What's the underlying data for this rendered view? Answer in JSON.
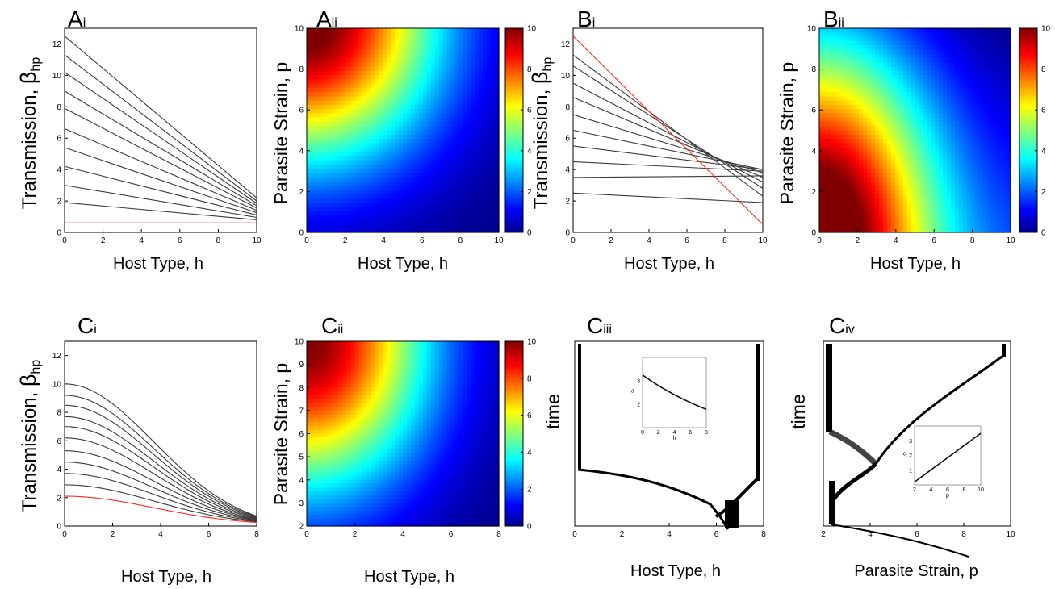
{
  "panels": {
    "Ai": {
      "big": "A",
      "small": "i"
    },
    "Aii": {
      "big": "A",
      "small": "ii"
    },
    "Bi": {
      "big": "B",
      "small": "i"
    },
    "Bii": {
      "big": "B",
      "small": "ii"
    },
    "Ci": {
      "big": "C",
      "small": "i"
    },
    "Cii": {
      "big": "C",
      "small": "ii"
    },
    "Ciii": {
      "big": "C",
      "small": "iii"
    },
    "Civ": {
      "big": "C",
      "small": "iv"
    }
  },
  "axis_text": {
    "host_type": "Host Type, h",
    "parasite_strain": "Parasite Strain, p",
    "transmission": "Transmission, ",
    "beta": "β",
    "beta_sub": "hp",
    "time": "time"
  },
  "colors": {
    "line": "#3a3a3a",
    "highlight": "#ff2a1a",
    "colormap": "jet"
  },
  "chart_data": [
    {
      "id": "Ai",
      "type": "line",
      "xlabel": "Host Type, h",
      "ylabel": "Transmission, β_hp",
      "xlim": [
        0,
        10
      ],
      "ylim": [
        0,
        13
      ],
      "xticks": [
        0,
        2,
        4,
        6,
        8,
        10
      ],
      "yticks": [
        0,
        2,
        4,
        6,
        8,
        10,
        12
      ],
      "x": [
        0,
        10
      ],
      "series": [
        {
          "values": [
            12.5,
            2.2
          ]
        },
        {
          "values": [
            11.3,
            2.0
          ]
        },
        {
          "values": [
            10.2,
            1.85
          ]
        },
        {
          "values": [
            9.0,
            1.7
          ]
        },
        {
          "values": [
            7.9,
            1.55
          ]
        },
        {
          "values": [
            6.6,
            1.4
          ]
        },
        {
          "values": [
            5.4,
            1.25
          ]
        },
        {
          "values": [
            4.2,
            1.1
          ]
        },
        {
          "values": [
            3.0,
            0.95
          ]
        },
        {
          "values": [
            1.9,
            0.8
          ]
        },
        {
          "values": [
            0.6,
            0.6
          ],
          "highlight": true
        }
      ]
    },
    {
      "id": "Aii",
      "type": "heatmap",
      "xlabel": "Host Type, h",
      "ylabel": "Parasite Strain, p",
      "xlim": [
        0,
        10
      ],
      "ylim": [
        0,
        10
      ],
      "xticks": [
        0,
        2,
        4,
        6,
        8,
        10
      ],
      "yticks": [
        0,
        2,
        4,
        6,
        8,
        10
      ],
      "colorbar": {
        "min": 0,
        "max": 10,
        "ticks": [
          0,
          2,
          4,
          6,
          8,
          10
        ]
      },
      "pattern": "max value 10 at h=0, p=10; decreasing toward h=10, p=0"
    },
    {
      "id": "Bi",
      "type": "line",
      "xlabel": "Host Type, h",
      "ylabel": "Transmission, β_hp",
      "xlim": [
        0,
        10
      ],
      "ylim": [
        0,
        13
      ],
      "xticks": [
        0,
        2,
        4,
        6,
        8,
        10
      ],
      "yticks": [
        0,
        2,
        4,
        6,
        8,
        10,
        12
      ],
      "x": [
        0,
        10
      ],
      "series": [
        {
          "values": [
            11.3,
            2.3
          ]
        },
        {
          "values": [
            10.6,
            2.8
          ]
        },
        {
          "values": [
            9.5,
            3.2
          ]
        },
        {
          "values": [
            8.6,
            3.5
          ]
        },
        {
          "values": [
            7.5,
            3.8
          ]
        },
        {
          "values": [
            6.5,
            4.0
          ]
        },
        {
          "values": [
            5.5,
            4.0
          ]
        },
        {
          "values": [
            4.5,
            3.9
          ]
        },
        {
          "values": [
            3.5,
            3.6
          ]
        },
        {
          "values": [
            2.5,
            1.9
          ]
        },
        {
          "values": [
            12.5,
            0.5
          ],
          "highlight": true
        }
      ]
    },
    {
      "id": "Bii",
      "type": "heatmap",
      "xlabel": "Host Type, h",
      "ylabel": "Parasite Strain, p",
      "xlim": [
        0,
        10
      ],
      "ylim": [
        0,
        10
      ],
      "xticks": [
        0,
        2,
        4,
        6,
        8,
        10
      ],
      "yticks": [
        0,
        2,
        4,
        6,
        8,
        10
      ],
      "colorbar": {
        "min": 0,
        "max": 10,
        "ticks": [
          0,
          2,
          4,
          6,
          8,
          10
        ]
      },
      "pattern": "max value 10 at h=0, p=0; decreasing toward high h and high p"
    },
    {
      "id": "Ci",
      "type": "line",
      "xlabel": "Host Type, h",
      "ylabel": "Transmission, β_hp",
      "xlim": [
        0,
        8
      ],
      "ylim": [
        0,
        13
      ],
      "xticks": [
        0,
        2,
        4,
        6,
        8
      ],
      "yticks": [
        0,
        2,
        4,
        6,
        8,
        10,
        12
      ],
      "curve": "bell-shaped decline, peak at h=0, sigma≈3.7",
      "series": [
        {
          "start": 10.0,
          "end": 0.7
        },
        {
          "start": 9.2,
          "end": 0.65
        },
        {
          "start": 8.5,
          "end": 0.6
        },
        {
          "start": 7.7,
          "end": 0.55
        },
        {
          "start": 7.0,
          "end": 0.5
        },
        {
          "start": 6.2,
          "end": 0.45
        },
        {
          "start": 5.3,
          "end": 0.42
        },
        {
          "start": 4.5,
          "end": 0.38
        },
        {
          "start": 3.7,
          "end": 0.34
        },
        {
          "start": 2.9,
          "end": 0.3
        },
        {
          "start": 2.1,
          "end": 0.25,
          "highlight": true
        }
      ]
    },
    {
      "id": "Cii",
      "type": "heatmap",
      "xlabel": "Host Type, h",
      "ylabel": "Parasite Strain, p",
      "xlim": [
        0,
        8
      ],
      "ylim": [
        2,
        10
      ],
      "xticks": [
        0,
        2,
        4,
        6,
        8
      ],
      "yticks": [
        2,
        3,
        4,
        5,
        6,
        7,
        8,
        9,
        10
      ],
      "colorbar": {
        "min": 0,
        "max": 10,
        "ticks": [
          0,
          2,
          4,
          6,
          8,
          10
        ]
      },
      "pattern": "max value 10 at h=0, p=10; decreasing toward h=8, p=2"
    },
    {
      "id": "Ciii",
      "type": "heatmap",
      "xlabel": "Host Type, h",
      "ylabel": "time",
      "xlim": [
        0,
        8
      ],
      "xticks": [
        0,
        2,
        4,
        6,
        8
      ],
      "inset": {
        "type": "line",
        "xlabel": "h",
        "ylabel": "a",
        "xlim": [
          0,
          8
        ],
        "ylim": [
          1,
          4
        ],
        "xticks": [
          0,
          2,
          4,
          6,
          8
        ],
        "yticks": [
          2,
          3
        ],
        "x": [
          0,
          2,
          4,
          6,
          8
        ],
        "y": [
          3.2,
          2.7,
          2.3,
          2.0,
          1.8
        ]
      }
    },
    {
      "id": "Civ",
      "type": "heatmap",
      "xlabel": "Parasite Strain, p",
      "ylabel": "time",
      "xlim": [
        2,
        10
      ],
      "xticks": [
        2,
        4,
        6,
        8,
        10
      ],
      "inset": {
        "type": "line",
        "xlabel": "p",
        "ylabel": "α",
        "xlim": [
          2,
          10
        ],
        "ylim": [
          0,
          4
        ],
        "xticks": [
          2,
          4,
          6,
          8,
          10
        ],
        "yticks": [
          1,
          2,
          3
        ],
        "x": [
          2,
          10
        ],
        "y": [
          0.2,
          3.5
        ]
      }
    }
  ]
}
